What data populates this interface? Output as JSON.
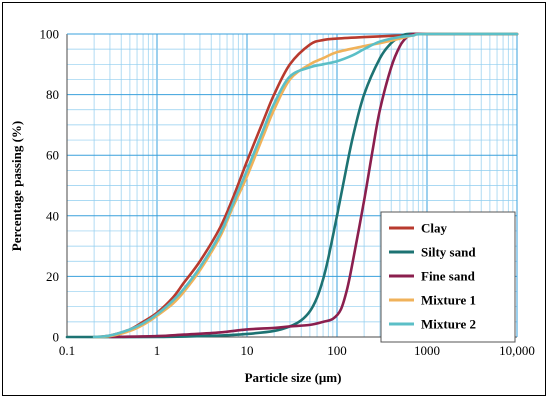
{
  "chart_data": {
    "type": "line",
    "title": "",
    "xlabel": "Particle size (μm)",
    "ylabel": "Percentage passing (%)",
    "x_scale": "log",
    "xlim": [
      0.1,
      10000
    ],
    "ylim": [
      0,
      100
    ],
    "grid": true,
    "legend_position": "bottom-right",
    "x_ticks": [
      {
        "value": 0.1,
        "label": "0.1"
      },
      {
        "value": 1,
        "label": "1"
      },
      {
        "value": 10,
        "label": "10"
      },
      {
        "value": 100,
        "label": "100"
      },
      {
        "value": 1000,
        "label": "1000"
      },
      {
        "value": 10000,
        "label": "10,000"
      }
    ],
    "y_ticks": [
      {
        "value": 0,
        "label": "0"
      },
      {
        "value": 20,
        "label": "20"
      },
      {
        "value": 40,
        "label": "40"
      },
      {
        "value": 60,
        "label": "60"
      },
      {
        "value": 80,
        "label": "80"
      },
      {
        "value": 100,
        "label": "100"
      }
    ],
    "series": [
      {
        "name": "Clay",
        "color": "#b83a2e",
        "x": [
          0.2,
          0.3,
          0.5,
          0.7,
          1,
          1.5,
          2,
          3,
          5,
          7,
          10,
          15,
          20,
          30,
          50,
          70,
          100,
          200,
          500,
          1000,
          10000
        ],
        "y": [
          0,
          0.5,
          2.5,
          5,
          8,
          13,
          18,
          25,
          36,
          46,
          58,
          71,
          80,
          90,
          96.5,
          98,
          98.5,
          99,
          99.5,
          100,
          100
        ]
      },
      {
        "name": "Silty sand",
        "color": "#1d7373",
        "x": [
          0.1,
          1,
          5,
          10,
          20,
          30,
          40,
          50,
          60,
          70,
          80,
          100,
          120,
          150,
          200,
          300,
          400,
          500,
          600,
          1000,
          10000
        ],
        "y": [
          0,
          0,
          0.5,
          1,
          2,
          3.5,
          5.5,
          8.5,
          13,
          19,
          26,
          40,
          52,
          66,
          80,
          92,
          97,
          99,
          100,
          100,
          100
        ]
      },
      {
        "name": "Fine sand",
        "color": "#8b1f4e",
        "x": [
          0.3,
          1,
          2,
          5,
          10,
          20,
          30,
          50,
          70,
          90,
          110,
          130,
          150,
          200,
          250,
          300,
          400,
          500,
          600,
          700,
          1000,
          10000
        ],
        "y": [
          0,
          0.3,
          0.8,
          1.5,
          2.5,
          3,
          3.5,
          4,
          5,
          6,
          9,
          16,
          25,
          45,
          62,
          75,
          89,
          96,
          99,
          100,
          100,
          100
        ]
      },
      {
        "name": "Mixture 1",
        "color": "#f0b25a",
        "x": [
          0.2,
          0.3,
          0.5,
          0.7,
          1,
          1.5,
          2,
          3,
          5,
          7,
          10,
          15,
          20,
          30,
          50,
          70,
          100,
          200,
          300,
          500,
          700,
          1000,
          10000
        ],
        "y": [
          0,
          0.3,
          2,
          4,
          7,
          11,
          15,
          22,
          33,
          43,
          53,
          66,
          75,
          85,
          90,
          92,
          94,
          96,
          97,
          98.5,
          99.5,
          100,
          100
        ]
      },
      {
        "name": "Mixture 2",
        "color": "#5bbfc7",
        "x": [
          0.2,
          0.3,
          0.5,
          0.7,
          1,
          1.5,
          2,
          3,
          5,
          7,
          10,
          15,
          20,
          30,
          50,
          70,
          100,
          150,
          200,
          300,
          500,
          700,
          1000,
          10000
        ],
        "y": [
          0,
          0.5,
          2.5,
          4.5,
          7.5,
          12,
          16,
          23,
          34,
          44,
          55,
          68,
          77,
          86,
          89,
          90,
          91,
          93,
          95,
          97.5,
          99,
          99.5,
          100,
          100
        ]
      }
    ]
  }
}
